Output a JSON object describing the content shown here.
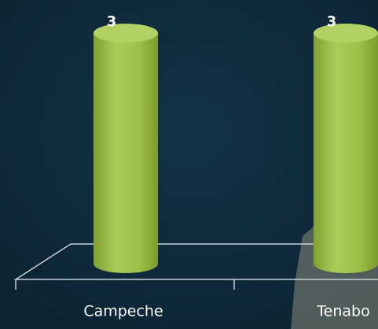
{
  "chart_data": {
    "type": "bar",
    "categories": [
      "Campeche",
      "Tenabo"
    ],
    "values": [
      3,
      3
    ],
    "color": "#9dc047"
  }
}
